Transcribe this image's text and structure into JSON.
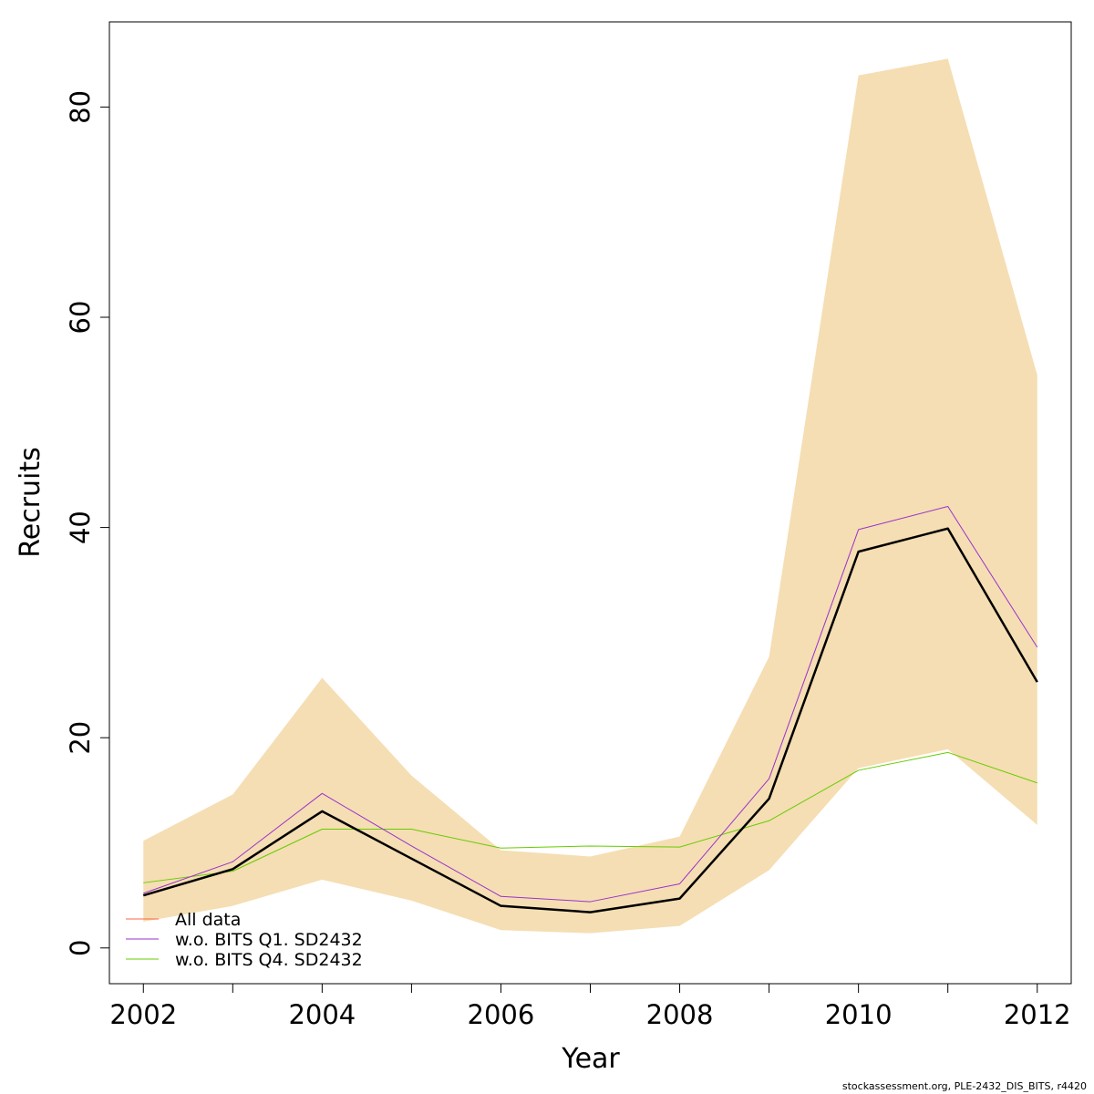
{
  "chart_data": {
    "type": "line",
    "title": "",
    "xlabel": "Year",
    "ylabel": "Recruits",
    "xlim": [
      2001.62,
      2012.38
    ],
    "ylim": [
      -3.4,
      88.1
    ],
    "x_ticks": [
      2002,
      2004,
      2006,
      2008,
      2010,
      2012
    ],
    "y_ticks": [
      0,
      20,
      40,
      60,
      80
    ],
    "x": [
      2002,
      2003,
      2004,
      2005,
      2006,
      2007,
      2008,
      2009,
      2010,
      2011,
      2012
    ],
    "band": {
      "color": "#F5DEB3",
      "lower": [
        2.5,
        4.0,
        6.5,
        4.5,
        1.7,
        1.4,
        2.1,
        7.4,
        17.1,
        18.9,
        11.7
      ],
      "upper": [
        10.2,
        14.6,
        25.7,
        16.4,
        9.3,
        8.7,
        10.6,
        27.7,
        83.0,
        84.6,
        54.5
      ]
    },
    "series": [
      {
        "name": "All data",
        "color": "#000000",
        "legend_color": "#FF6347",
        "width": 2.5,
        "values": [
          5.0,
          7.5,
          13.0,
          8.5,
          4.0,
          3.4,
          4.7,
          14.2,
          37.7,
          39.9,
          25.3
        ]
      },
      {
        "name": "w.o. BITS Q1. SD2432",
        "color": "#9932CC",
        "legend_color": "#9932CC",
        "width": 1,
        "values": [
          5.2,
          8.2,
          14.7,
          9.7,
          4.9,
          4.4,
          6.1,
          16.1,
          39.8,
          42.0,
          28.6
        ]
      },
      {
        "name": "w.o. BITS Q4. SD2432",
        "color": "#66CC00",
        "legend_color": "#66CC00",
        "width": 1,
        "values": [
          6.2,
          7.3,
          11.3,
          11.3,
          9.5,
          9.7,
          9.6,
          12.1,
          16.9,
          18.6,
          15.7
        ]
      }
    ],
    "legend_position": "bottom-left",
    "grid": false
  },
  "footer_text": "stockassessment.org, PLE-2432_DIS_BITS, r4420"
}
